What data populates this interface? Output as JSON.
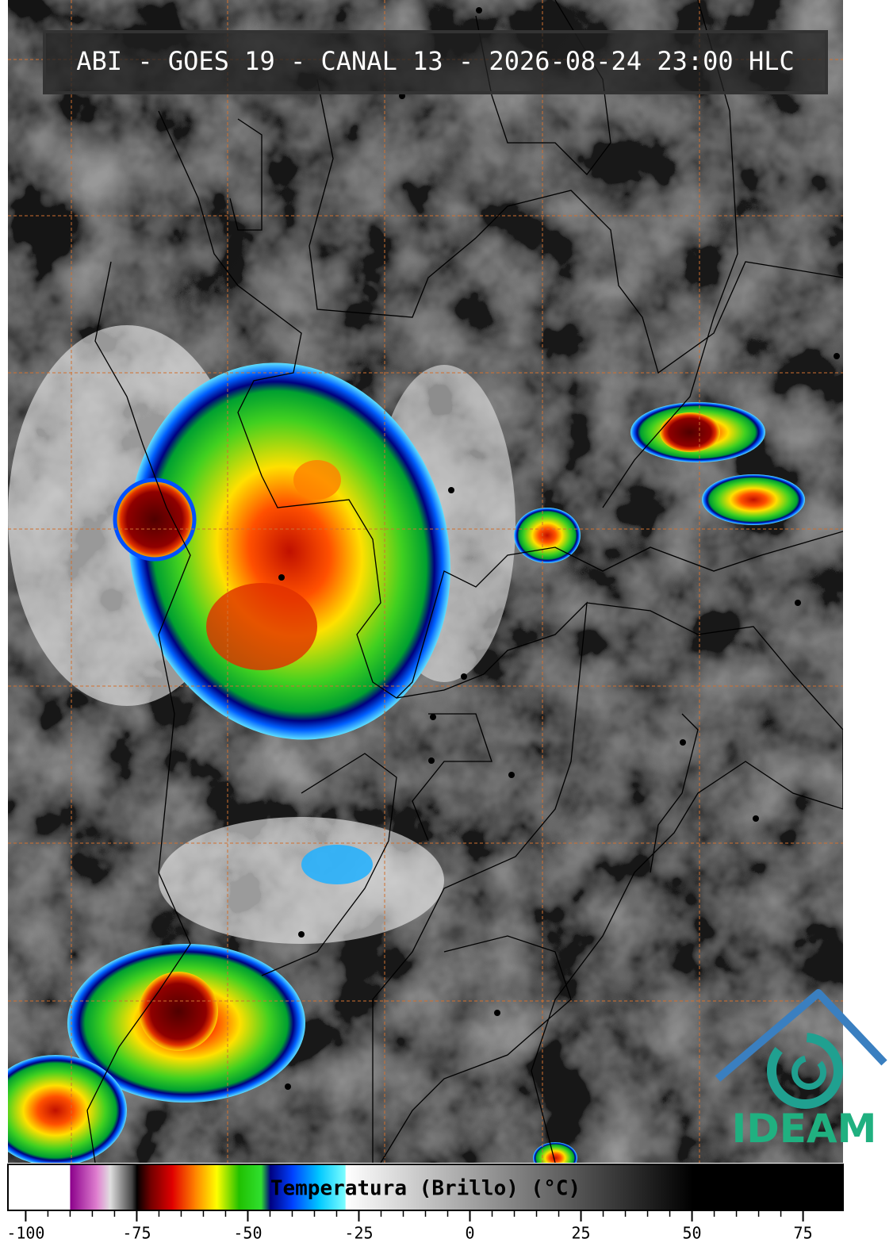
{
  "header": {
    "title": "ABI - GOES 19 - CANAL 13 - 2026-08-24 23:00 HLC"
  },
  "logo": {
    "text": "IDEAM"
  },
  "chart_data": {
    "type": "colorbar",
    "title": "Temperatura (Brillo) (°C)",
    "xlim": [
      -104,
      84
    ],
    "xticks": [
      -100,
      -75,
      -50,
      -25,
      0,
      25,
      50,
      75
    ],
    "stops": [
      {
        "value": -104,
        "color": "#ffffff"
      },
      {
        "value": -90,
        "color": "#ffffff"
      },
      {
        "value": -90,
        "color": "#8b008b"
      },
      {
        "value": -84,
        "color": "#e080d0"
      },
      {
        "value": -81,
        "color": "#e0e0e0"
      },
      {
        "value": -76,
        "color": "#404040"
      },
      {
        "value": -75,
        "color": "#000000"
      },
      {
        "value": -72,
        "color": "#700000"
      },
      {
        "value": -67,
        "color": "#e00000"
      },
      {
        "value": -62,
        "color": "#ff8000"
      },
      {
        "value": -57,
        "color": "#ffff00"
      },
      {
        "value": -52,
        "color": "#20c000"
      },
      {
        "value": -47,
        "color": "#30e030"
      },
      {
        "value": -45,
        "color": "#000080"
      },
      {
        "value": -40,
        "color": "#0040ff"
      },
      {
        "value": -34,
        "color": "#00c8ff"
      },
      {
        "value": -28,
        "color": "#80ffff"
      },
      {
        "value": -28,
        "color": "#ffffff"
      },
      {
        "value": 50,
        "color": "#000000"
      },
      {
        "value": 84,
        "color": "#000000"
      }
    ]
  }
}
